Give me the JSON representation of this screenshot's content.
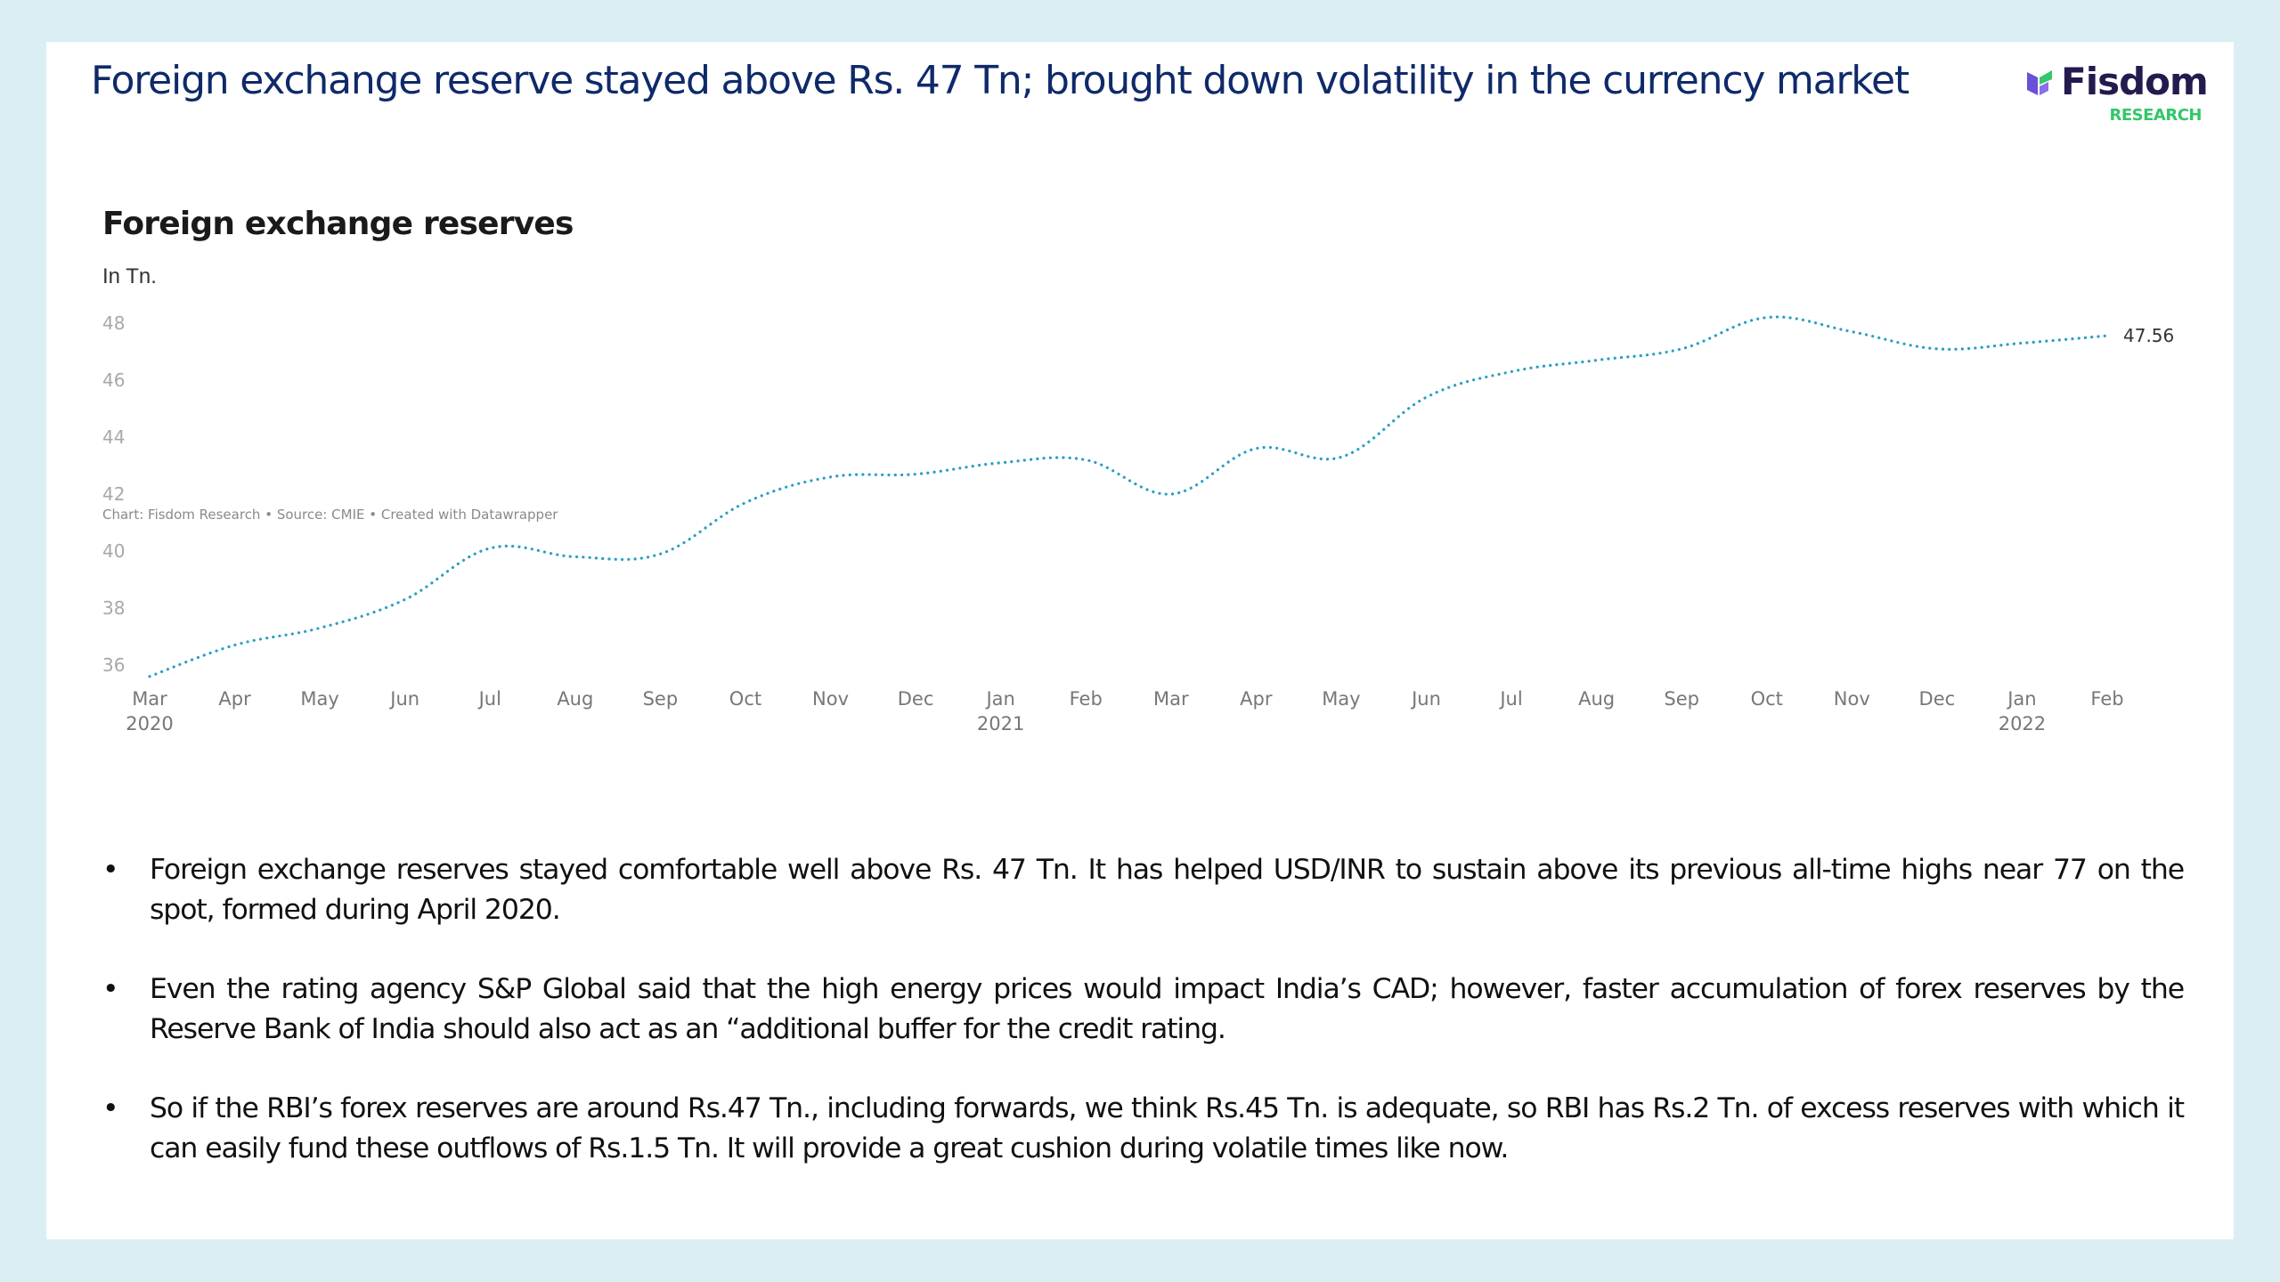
{
  "slide": {
    "title": "Foreign exchange reserve stayed above Rs. 47 Tn; brought down volatility in the currency market",
    "logo": {
      "name": "Fisdom",
      "subtitle": "RESEARCH",
      "icon": "fisdom-logo-icon"
    },
    "colors": {
      "background": "#daeef4",
      "title": "#0f2a6a",
      "line": "#2a9fc4",
      "logo_dark": "#251a4e",
      "logo_green": "#33c66a"
    }
  },
  "chart_data": {
    "type": "line",
    "title": "Foreign exchange reserves",
    "subtitle": "In Tn.",
    "xlabel": "",
    "ylabel": "In Tn.",
    "ylim": [
      36,
      48
    ],
    "yticks": [
      48,
      46,
      44,
      42,
      40,
      38,
      36
    ],
    "grid": false,
    "line_style": "dotted",
    "x": [
      "Mar 2020",
      "Apr",
      "May",
      "Jun",
      "Jul",
      "Aug",
      "Sep",
      "Oct",
      "Nov",
      "Dec",
      "Jan 2021",
      "Feb",
      "Mar",
      "Apr",
      "May",
      "Jun",
      "Jul",
      "Aug",
      "Sep",
      "Oct",
      "Nov",
      "Dec",
      "Jan 2022",
      "Feb"
    ],
    "xtick_labels": [
      {
        "month": "Mar",
        "year": "2020"
      },
      {
        "month": "Apr",
        "year": ""
      },
      {
        "month": "May",
        "year": ""
      },
      {
        "month": "Jun",
        "year": ""
      },
      {
        "month": "Jul",
        "year": ""
      },
      {
        "month": "Aug",
        "year": ""
      },
      {
        "month": "Sep",
        "year": ""
      },
      {
        "month": "Oct",
        "year": ""
      },
      {
        "month": "Nov",
        "year": ""
      },
      {
        "month": "Dec",
        "year": ""
      },
      {
        "month": "Jan",
        "year": "2021"
      },
      {
        "month": "Feb",
        "year": ""
      },
      {
        "month": "Mar",
        "year": ""
      },
      {
        "month": "Apr",
        "year": ""
      },
      {
        "month": "May",
        "year": ""
      },
      {
        "month": "Jun",
        "year": ""
      },
      {
        "month": "Jul",
        "year": ""
      },
      {
        "month": "Aug",
        "year": ""
      },
      {
        "month": "Sep",
        "year": ""
      },
      {
        "month": "Oct",
        "year": ""
      },
      {
        "month": "Nov",
        "year": ""
      },
      {
        "month": "Dec",
        "year": ""
      },
      {
        "month": "Jan",
        "year": "2022"
      },
      {
        "month": "Feb",
        "year": ""
      }
    ],
    "series": [
      {
        "name": "Foreign exchange reserves",
        "values": [
          35.6,
          36.7,
          37.3,
          38.3,
          40.1,
          39.8,
          39.9,
          41.7,
          42.6,
          42.7,
          43.1,
          43.2,
          42.0,
          43.6,
          43.3,
          45.4,
          46.3,
          46.7,
          47.1,
          48.2,
          47.7,
          47.1,
          47.3,
          47.56
        ]
      }
    ],
    "end_label": "47.56",
    "notes": "Chart: Fisdom Research • Source: CMIE • Created with Datawrapper"
  },
  "bullets": [
    {
      "marker": "•",
      "text": "Foreign exchange reserves stayed comfortable well above Rs. 47 Tn. It has helped USD/INR to sustain above its previous all-time highs near 77 on the spot, formed during April 2020."
    },
    {
      "marker": "•",
      "text": "Even the rating agency S&P Global said that the high energy prices would impact India’s CAD; however, faster accumulation of forex reserves by the Reserve Bank of India should also act as an “additional buffer for the credit rating."
    },
    {
      "marker": "•",
      "text": "So if the RBI’s forex reserves are around Rs.47 Tn., including forwards, we think Rs.45 Tn. is adequate, so RBI has Rs.2 Tn. of excess reserves with which it can easily fund these outflows of Rs.1.5 Tn. It will provide a great cushion during volatile times like now."
    }
  ]
}
